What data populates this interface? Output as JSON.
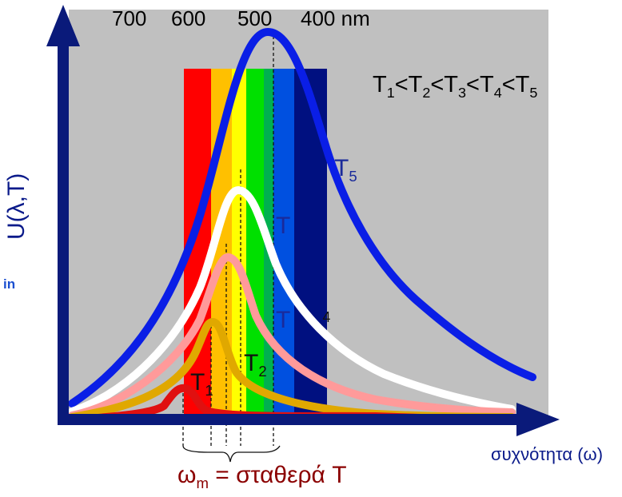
{
  "wavelength_scale": {
    "labels": [
      "700",
      "600",
      "500",
      "400 nm"
    ],
    "values_nm": [
      700,
      600,
      500,
      400
    ]
  },
  "inequality": {
    "parts": [
      "T",
      "1",
      "<T",
      "2",
      "<T",
      "3",
      "<T",
      "4",
      "<T",
      "5"
    ]
  },
  "axes": {
    "y_label": "U(λ,T)",
    "x_label": "συχνότητα (ω)"
  },
  "curve_labels": {
    "t5_main": "T",
    "t5_sub": "5",
    "t4_main": "T",
    "t4_sub": "4",
    "t3_main": "T",
    "t2_main": "T",
    "t2_sub": "2",
    "t1_main": "T",
    "t1_sub": "1"
  },
  "wien": {
    "main": "ω",
    "sub": "m",
    "rest": " = σταθερά T"
  },
  "cut_text": "in",
  "curves": [
    {
      "id": "T5",
      "color": "#0a1ee6"
    },
    {
      "id": "T4",
      "color": "#ffffff"
    },
    {
      "id": "T3",
      "color": "#ff9a9a"
    },
    {
      "id": "T2",
      "color": "#e0a800"
    },
    {
      "id": "T1",
      "color": "#e01010"
    }
  ],
  "spectrum_colors": [
    "#ff0000",
    "#ffc000",
    "#ffff00",
    "#00e000",
    "#00b050",
    "#0050e0",
    "#001080"
  ],
  "axis_color": "#0a1a7a"
}
